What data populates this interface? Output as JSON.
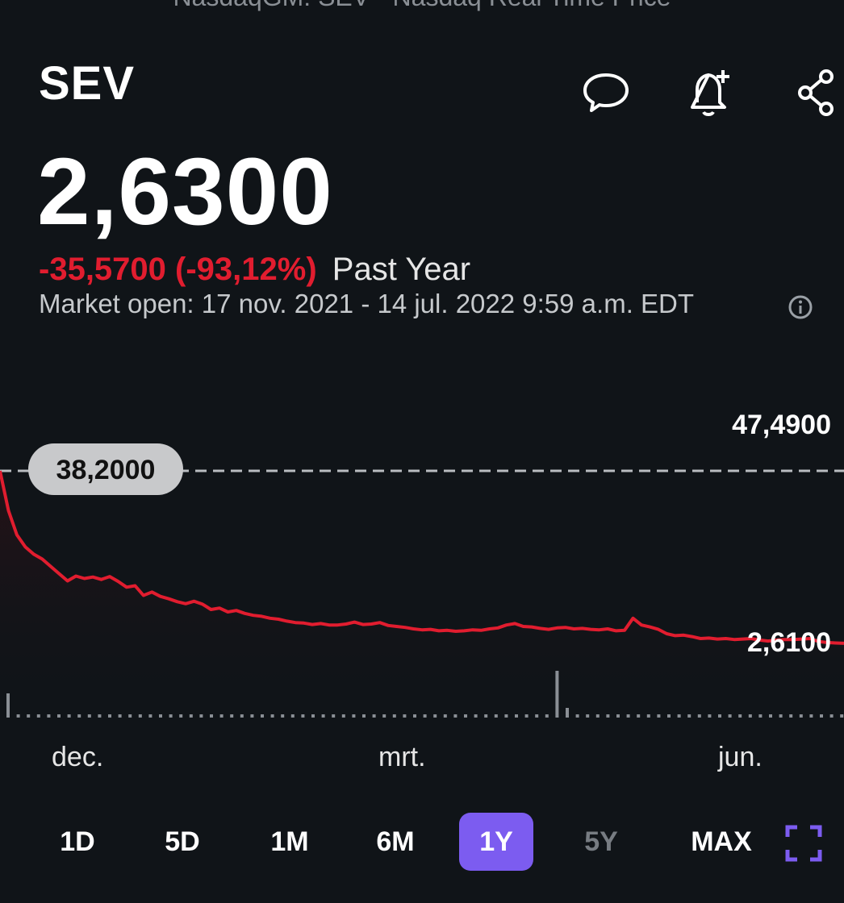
{
  "header": {
    "subtitle": "NasdaqGM: SEV - Nasdaq Real Time Price",
    "ticker": "SEV",
    "icons": [
      "comment-icon",
      "add-alert-icon",
      "share-icon"
    ]
  },
  "quote": {
    "price": "2,6300",
    "change": "-35,5700 (-93,12%)",
    "period": "Past Year",
    "market_status": "Market open: 17 nov. 2021 - 14 jul. 2022 9:59 a.m. EDT"
  },
  "chart_data": {
    "type": "line",
    "start_value_label": "38,2000",
    "high_label": "47,4900",
    "low_label": "2,6100",
    "ylim": [
      2.61,
      47.49
    ],
    "start_value": 38.2,
    "x_labels": [
      "dec.",
      "mrt.",
      "jun."
    ],
    "series": [
      {
        "values": [
          38.2,
          30,
          25,
          22.5,
          21,
          20,
          18.5,
          17,
          15.5,
          16.5,
          16,
          16.3,
          15.8,
          16.4,
          15.4,
          14.2,
          14.5,
          12.5,
          13.2,
          12.3,
          11.8,
          11.2,
          10.8,
          11.3,
          10.7,
          9.6,
          9.9,
          9.1,
          9.4,
          8.8,
          8.4,
          8.2,
          7.8,
          7.6,
          7.2,
          6.9,
          6.8,
          6.5,
          6.7,
          6.4,
          6.4,
          6.6,
          7.0,
          6.5,
          6.6,
          6.9,
          6.3,
          6.1,
          5.9,
          5.6,
          5.4,
          5.5,
          5.2,
          5.3,
          5.1,
          5.2,
          5.4,
          5.3,
          5.6,
          5.8,
          6.4,
          6.7,
          6.1,
          6.0,
          5.7,
          5.5,
          5.8,
          5.9,
          5.6,
          5.7,
          5.5,
          5.4,
          5.6,
          5.2,
          5.3,
          7.8,
          6.4,
          6.0,
          5.5,
          4.6,
          4.2,
          4.3,
          4.0,
          3.6,
          3.7,
          3.5,
          3.6,
          3.4,
          3.5,
          3.6,
          3.3,
          3.1,
          3.3,
          3.4,
          3.4,
          3.5,
          3.6,
          3.0,
          2.8,
          2.7,
          2.63
        ]
      }
    ]
  },
  "ranges": {
    "items": [
      "1D",
      "5D",
      "1M",
      "6M",
      "1Y",
      "5Y",
      "MAX"
    ],
    "active": "1Y",
    "disabled": [
      "5Y"
    ]
  },
  "colors": {
    "background": "#101418",
    "negative": "#e11d2f",
    "accent": "#7c5cf0"
  }
}
